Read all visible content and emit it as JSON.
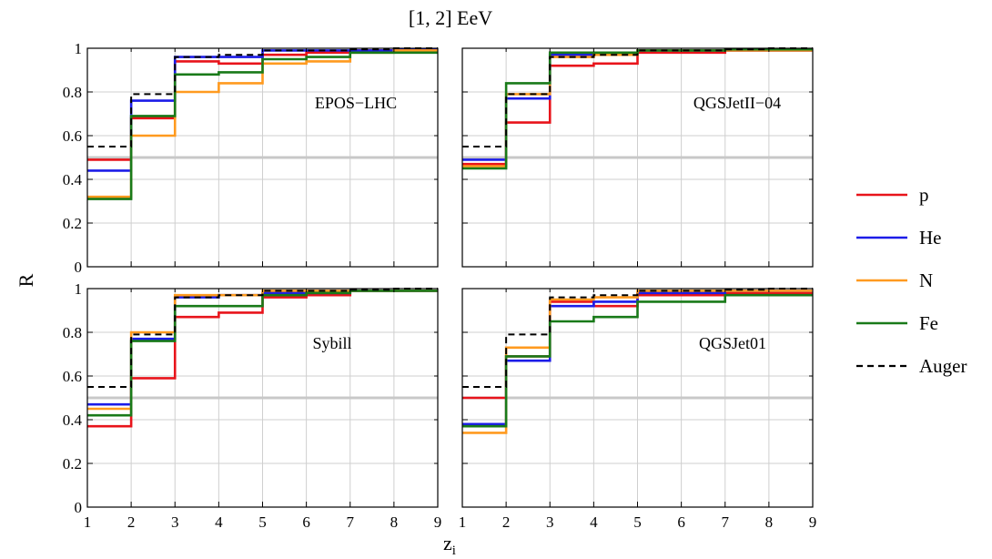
{
  "title": "[1, 2] EeV",
  "chart_data": {
    "type": "line",
    "step": true,
    "xlabel": "z",
    "xlabel_sub": "i",
    "ylabel": "R",
    "xlim": [
      1,
      9
    ],
    "ylim": [
      0,
      1
    ],
    "x_ticks": [
      "1",
      "2",
      "3",
      "4",
      "5",
      "6",
      "7",
      "8",
      "9"
    ],
    "y_ticks": [
      "0",
      "0.2",
      "0.4",
      "0.6",
      "0.8",
      "1"
    ],
    "grid": true,
    "reference_line": 0.5,
    "legend_position": "right",
    "series_styles": [
      {
        "name": "p",
        "color": "#e8141b",
        "dash": false
      },
      {
        "name": "He",
        "color": "#1c1ce8",
        "dash": false
      },
      {
        "name": "N",
        "color": "#ff9a1f",
        "dash": false
      },
      {
        "name": "Fe",
        "color": "#197a19",
        "dash": false
      },
      {
        "name": "Auger",
        "color": "#000000",
        "dash": true
      }
    ],
    "panels": [
      {
        "label": "EPOS−LHC",
        "series": [
          {
            "name": "p",
            "values": [
              0.49,
              0.68,
              0.94,
              0.93,
              0.97,
              0.98,
              0.99,
              0.995
            ]
          },
          {
            "name": "He",
            "values": [
              0.44,
              0.76,
              0.96,
              0.96,
              0.99,
              0.99,
              0.99,
              0.995
            ]
          },
          {
            "name": "N",
            "values": [
              0.32,
              0.6,
              0.8,
              0.84,
              0.93,
              0.94,
              0.98,
              0.99
            ]
          },
          {
            "name": "Fe",
            "values": [
              0.31,
              0.69,
              0.88,
              0.89,
              0.95,
              0.96,
              0.98,
              0.98
            ]
          },
          {
            "name": "Auger",
            "values": [
              0.55,
              0.79,
              0.96,
              0.97,
              0.99,
              0.99,
              0.995,
              1.0
            ]
          }
        ]
      },
      {
        "label": "QGSJetII−04",
        "series": [
          {
            "name": "p",
            "values": [
              0.47,
              0.66,
              0.92,
              0.93,
              0.98,
              0.98,
              0.99,
              0.99
            ]
          },
          {
            "name": "He",
            "values": [
              0.49,
              0.77,
              0.97,
              0.98,
              0.99,
              0.99,
              0.99,
              0.99
            ]
          },
          {
            "name": "N",
            "values": [
              0.46,
              0.79,
              0.96,
              0.97,
              0.99,
              0.99,
              0.99,
              0.99
            ]
          },
          {
            "name": "Fe",
            "values": [
              0.45,
              0.84,
              0.98,
              0.98,
              0.99,
              0.99,
              0.995,
              0.995
            ]
          },
          {
            "name": "Auger",
            "values": [
              0.55,
              0.79,
              0.96,
              0.97,
              0.99,
              0.99,
              0.995,
              1.0
            ]
          }
        ]
      },
      {
        "label": "Sybill",
        "series": [
          {
            "name": "p",
            "values": [
              0.37,
              0.59,
              0.87,
              0.89,
              0.96,
              0.97,
              0.99,
              0.99
            ]
          },
          {
            "name": "He",
            "values": [
              0.47,
              0.77,
              0.96,
              0.97,
              0.98,
              0.98,
              0.99,
              0.99
            ]
          },
          {
            "name": "N",
            "values": [
              0.45,
              0.8,
              0.97,
              0.97,
              0.99,
              0.99,
              0.99,
              0.99
            ]
          },
          {
            "name": "Fe",
            "values": [
              0.42,
              0.76,
              0.92,
              0.92,
              0.97,
              0.98,
              0.99,
              0.99
            ]
          },
          {
            "name": "Auger",
            "values": [
              0.55,
              0.79,
              0.96,
              0.97,
              0.99,
              0.99,
              0.995,
              1.0
            ]
          }
        ]
      },
      {
        "label": "QGSJet01",
        "series": [
          {
            "name": "p",
            "values": [
              0.5,
              0.69,
              0.94,
              0.92,
              0.97,
              0.97,
              0.98,
              0.98
            ]
          },
          {
            "name": "He",
            "values": [
              0.38,
              0.67,
              0.92,
              0.94,
              0.98,
              0.98,
              0.99,
              0.99
            ]
          },
          {
            "name": "N",
            "values": [
              0.34,
              0.73,
              0.95,
              0.96,
              0.99,
              0.99,
              0.99,
              0.99
            ]
          },
          {
            "name": "Fe",
            "values": [
              0.37,
              0.69,
              0.85,
              0.87,
              0.94,
              0.94,
              0.97,
              0.97
            ]
          },
          {
            "name": "Auger",
            "values": [
              0.55,
              0.79,
              0.96,
              0.97,
              0.99,
              0.99,
              0.995,
              1.0
            ]
          }
        ]
      }
    ]
  }
}
